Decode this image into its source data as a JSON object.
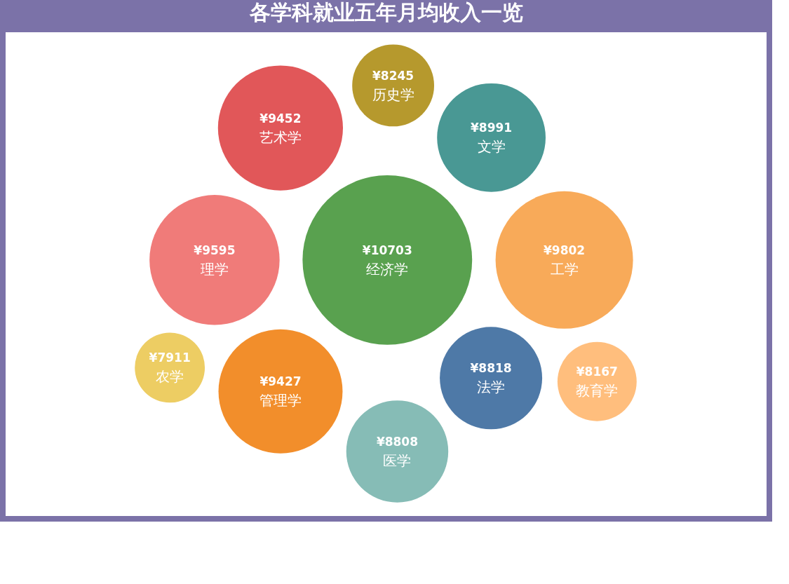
{
  "chart_data": {
    "type": "other",
    "title": "各学科就业五年月均收入一览",
    "categories": [
      "法学",
      "医学",
      "文学",
      "经济学",
      "工学",
      "农学",
      "教育学",
      "管理学",
      "历史学",
      "理学",
      "艺术学"
    ],
    "values": [
      8818,
      8808,
      8991,
      10703,
      9802,
      7911,
      8167,
      9427,
      8245,
      9595,
      9452
    ],
    "value_labels": [
      "¥8818",
      "¥8808",
      "¥8991",
      "¥10703",
      "¥9802",
      "¥7911",
      "¥8167",
      "¥9427",
      "¥8245",
      "¥9595",
      "¥9452"
    ],
    "colors": [
      "#4e79a7",
      "#86bcb6",
      "#499894",
      "#59a14f",
      "#f8aa59",
      "#edcd63",
      "#ffbe7d",
      "#f28e2b",
      "#b6992d",
      "#f07b79",
      "#e15759"
    ]
  }
}
